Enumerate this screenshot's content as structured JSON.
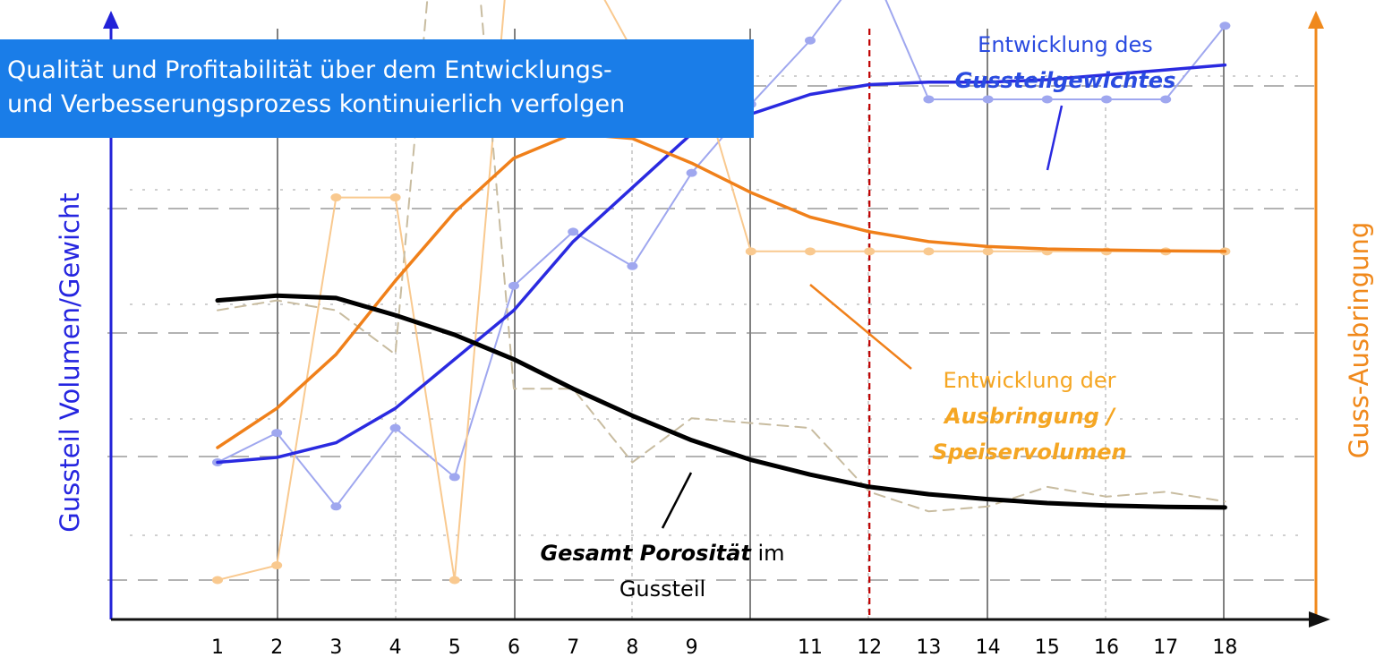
{
  "banner": {
    "line1": "Qualität und Profitabilität über dem Entwicklungs-",
    "line2": "und Verbesserungsprozess kontinuierlich verfolgen"
  },
  "axis_labels": {
    "left": "Gussteil Volumen/Gewicht",
    "right": "Guss-Ausbringung"
  },
  "annotations": {
    "weight_line1": "Entwicklung des",
    "weight_line2": "Gussteilgewichtes",
    "yield_line1": "Entwicklung der",
    "yield_line2": "Ausbringung /",
    "yield_line3": "Speiservolumen",
    "porosity_bold": "Gesamt Porosität",
    "porosity_rest": " im",
    "porosity_line2": "Gussteil"
  },
  "colors": {
    "weight": "#2a2ae0",
    "weight_light": "#9fa7ef",
    "yield": "#f0801a",
    "yield_light": "#f9c98f",
    "porosity": "#000000",
    "porosity_light": "#c8bca0",
    "marker_line": "#c00000"
  },
  "chart_data": {
    "type": "line",
    "x_ticks": [
      "1",
      "2",
      "3",
      "4",
      "5",
      "6",
      "7",
      "8",
      "9",
      "11",
      "12",
      "13",
      "14",
      "15",
      "16",
      "17",
      "18"
    ],
    "xlim": [
      0,
      18.5
    ],
    "ylim": [
      0,
      100
    ],
    "y_axis_values_shown": false,
    "reference_line_x": 12,
    "series": [
      {
        "name": "Entwicklung des Gussteilgewichtes",
        "style": "measured-light",
        "axis": "left",
        "points": [
          [
            1,
            24
          ],
          [
            2,
            30
          ],
          [
            3,
            15
          ],
          [
            4,
            31
          ],
          [
            5,
            21
          ],
          [
            6,
            60
          ],
          [
            7,
            71
          ],
          [
            8,
            64
          ],
          [
            9,
            83
          ],
          [
            10,
            97
          ],
          [
            11,
            110
          ],
          [
            12,
            126
          ],
          [
            13,
            98
          ],
          [
            14,
            98
          ],
          [
            15,
            98
          ],
          [
            16,
            98
          ],
          [
            17,
            98
          ],
          [
            18,
            113
          ]
        ]
      },
      {
        "name": "Entwicklung des Gussteilgewichtes",
        "style": "trend",
        "axis": "left",
        "points": [
          [
            1,
            24
          ],
          [
            2,
            25
          ],
          [
            3,
            28
          ],
          [
            4,
            35
          ],
          [
            5,
            45
          ],
          [
            6,
            55
          ],
          [
            7,
            69
          ],
          [
            8,
            80
          ],
          [
            9,
            91
          ],
          [
            10,
            95
          ],
          [
            11,
            99
          ],
          [
            12,
            101
          ],
          [
            13,
            101.5
          ],
          [
            14,
            101.5
          ],
          [
            15,
            102
          ],
          [
            16,
            103
          ],
          [
            17,
            104
          ],
          [
            18,
            105
          ]
        ]
      },
      {
        "name": "Entwicklung der Ausbringung / Speiservolumen",
        "style": "measured-light",
        "axis": "right",
        "points": [
          [
            1,
            0
          ],
          [
            2,
            3
          ],
          [
            3,
            78
          ],
          [
            4,
            78
          ],
          [
            5,
            0
          ],
          [
            6,
            140
          ],
          [
            7,
            130
          ],
          [
            8,
            108
          ],
          [
            9,
            108
          ],
          [
            10,
            67
          ],
          [
            11,
            67
          ],
          [
            12,
            67
          ],
          [
            13,
            67
          ],
          [
            14,
            67
          ],
          [
            15,
            67
          ],
          [
            16,
            67
          ],
          [
            17,
            67
          ],
          [
            18,
            67
          ]
        ]
      },
      {
        "name": "Entwicklung der Ausbringung / Speiservolumen",
        "style": "trend",
        "axis": "right",
        "points": [
          [
            1,
            27
          ],
          [
            2,
            35
          ],
          [
            3,
            46
          ],
          [
            4,
            61
          ],
          [
            5,
            75
          ],
          [
            6,
            86
          ],
          [
            7,
            91
          ],
          [
            8,
            90
          ],
          [
            9,
            85
          ],
          [
            10,
            79
          ],
          [
            11,
            74
          ],
          [
            12,
            71
          ],
          [
            13,
            69
          ],
          [
            14,
            68
          ],
          [
            15,
            67.5
          ],
          [
            16,
            67.3
          ],
          [
            17,
            67.1
          ],
          [
            18,
            67
          ]
        ]
      },
      {
        "name": "Gesamt Porosität im Gussteil",
        "style": "measured-light",
        "axis": "left",
        "points": [
          [
            1,
            55
          ],
          [
            2,
            57
          ],
          [
            3,
            55
          ],
          [
            4,
            46
          ],
          [
            5,
            180
          ],
          [
            6,
            39
          ],
          [
            7,
            39
          ],
          [
            8,
            24
          ],
          [
            9,
            33
          ],
          [
            10,
            32
          ],
          [
            11,
            31
          ],
          [
            12,
            18
          ],
          [
            13,
            14
          ],
          [
            14,
            15
          ],
          [
            15,
            19
          ],
          [
            16,
            17
          ],
          [
            17,
            18
          ],
          [
            18,
            16
          ]
        ]
      },
      {
        "name": "Gesamt Porosität im Gussteil",
        "style": "trend",
        "axis": "left",
        "points": [
          [
            1,
            57
          ],
          [
            2,
            58
          ],
          [
            3,
            57.5
          ],
          [
            4,
            54
          ],
          [
            5,
            50
          ],
          [
            6,
            45
          ],
          [
            7,
            39
          ],
          [
            8,
            33.5
          ],
          [
            9,
            28.5
          ],
          [
            10,
            24.5
          ],
          [
            11,
            21.5
          ],
          [
            12,
            19
          ],
          [
            13,
            17.5
          ],
          [
            14,
            16.5
          ],
          [
            15,
            15.7
          ],
          [
            16,
            15.2
          ],
          [
            17,
            14.9
          ],
          [
            18,
            14.8
          ]
        ]
      }
    ]
  }
}
